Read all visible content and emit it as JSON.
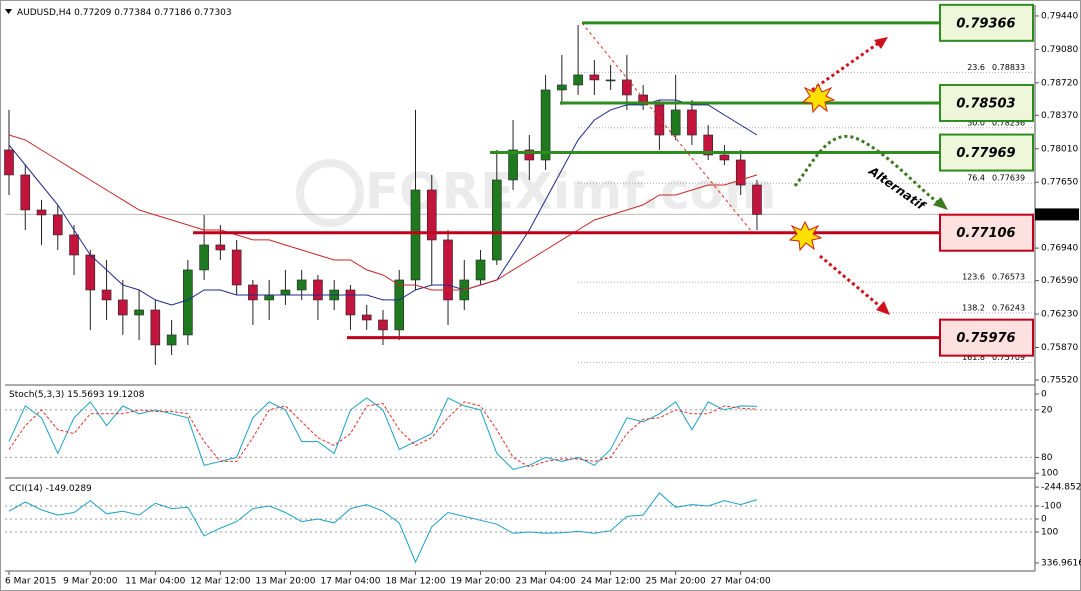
{
  "chart_data": [
    {
      "type": "candlestick",
      "title": "AUDUSD,H4",
      "header_values": [
        0.77209,
        0.77384,
        0.77186,
        0.77303
      ],
      "categories": [
        "6 Mar 2015",
        null,
        null,
        null,
        null,
        "9 Mar 20:00",
        null,
        null,
        null,
        "11 Mar 04:00",
        null,
        null,
        null,
        "12 Mar 12:00",
        null,
        null,
        null,
        "13 Mar 20:00",
        null,
        null,
        null,
        "17 Mar 04:00",
        null,
        null,
        null,
        "18 Mar 12:00",
        null,
        null,
        null,
        "19 Mar 20:00",
        null,
        null,
        null,
        "23 Mar 04:00",
        null,
        null,
        null,
        "24 Mar 12:00",
        null,
        null,
        null,
        "25 Mar 20:00",
        null,
        null,
        null,
        "27 Mar 04:00",
        null
      ],
      "ohlc": [
        [
          0.77997,
          0.78428,
          0.77512,
          0.77728
        ],
        [
          0.77728,
          0.77835,
          0.77135,
          0.77351
        ],
        [
          0.77351,
          0.77459,
          0.76974,
          0.77297
        ],
        [
          0.77297,
          0.77405,
          0.7692,
          0.77082
        ],
        [
          0.77082,
          0.77189,
          0.76651,
          0.76866
        ],
        [
          0.76866,
          0.7692,
          0.76059,
          0.76489
        ],
        [
          0.76489,
          0.76812,
          0.76166,
          0.76382
        ],
        [
          0.76382,
          0.76597,
          0.76005,
          0.7622
        ],
        [
          0.7622,
          0.76489,
          0.75951,
          0.76274
        ],
        [
          0.76274,
          0.76382,
          0.75682,
          0.75897
        ],
        [
          0.75897,
          0.76166,
          0.75789,
          0.76005
        ],
        [
          0.76005,
          0.76812,
          0.75897,
          0.76705
        ],
        [
          0.76705,
          0.77297,
          0.76597,
          0.76974
        ],
        [
          0.76974,
          0.77189,
          0.76812,
          0.7692
        ],
        [
          0.7692,
          0.77028,
          0.76435,
          0.76543
        ],
        [
          0.76543,
          0.76597,
          0.76112,
          0.76382
        ],
        [
          0.76382,
          0.76597,
          0.76166,
          0.76435
        ],
        [
          0.76435,
          0.76705,
          0.76328,
          0.76489
        ],
        [
          0.76489,
          0.76705,
          0.76382,
          0.76597
        ],
        [
          0.76597,
          0.76651,
          0.76166,
          0.76382
        ],
        [
          0.76382,
          0.76597,
          0.76274,
          0.76489
        ],
        [
          0.76489,
          0.76543,
          0.76059,
          0.7622
        ],
        [
          0.7622,
          0.76328,
          0.76059,
          0.76166
        ],
        [
          0.76166,
          0.76274,
          0.75897,
          0.76059
        ],
        [
          0.76059,
          0.76705,
          0.75951,
          0.76597
        ],
        [
          0.76597,
          0.78428,
          0.76489,
          0.77566
        ],
        [
          0.77566,
          0.77728,
          0.76543,
          0.77028
        ],
        [
          0.77028,
          0.77135,
          0.76112,
          0.76382
        ],
        [
          0.76382,
          0.76812,
          0.76274,
          0.76597
        ],
        [
          0.76597,
          0.7692,
          0.76543,
          0.76812
        ],
        [
          0.76812,
          0.77997,
          0.76759,
          0.77674
        ],
        [
          0.77674,
          0.7832,
          0.77566,
          0.77997
        ],
        [
          0.77997,
          0.78158,
          0.77674,
          0.77889
        ],
        [
          0.77889,
          0.78805,
          0.77782,
          0.78643
        ],
        [
          0.78643,
          0.7902,
          0.78482,
          0.78697
        ],
        [
          0.78697,
          0.79343,
          0.78589,
          0.78805
        ],
        [
          0.78805,
          0.78966,
          0.78589,
          0.78751
        ],
        [
          0.78751,
          0.78912,
          0.78643,
          0.78751
        ],
        [
          0.78751,
          0.7902,
          0.78428,
          0.78589
        ],
        [
          0.78589,
          0.78697,
          0.78428,
          0.78482
        ],
        [
          0.78482,
          0.78535,
          0.77997,
          0.78158
        ],
        [
          0.78158,
          0.78805,
          0.78105,
          0.78428
        ],
        [
          0.78428,
          0.78535,
          0.78051,
          0.78158
        ],
        [
          0.78158,
          0.78266,
          0.77889,
          0.77943
        ],
        [
          0.77943,
          0.78051,
          0.77835,
          0.77889
        ],
        [
          0.77889,
          0.77997,
          0.77512,
          0.7762
        ],
        [
          0.7762,
          0.77674,
          0.77135,
          0.77303
        ]
      ],
      "up_color": "#1f7a1f",
      "down_color": "#c2143c",
      "lines": [
        {
          "color": "#1f2a8a",
          "values": [
            0.78051,
            0.77835,
            0.7762,
            0.77405,
            0.77135,
            0.76866,
            0.76705,
            0.76543,
            0.76489,
            0.76382,
            0.76328,
            0.76382,
            0.76489,
            0.76489,
            0.76435,
            0.76435,
            0.76435,
            0.76435,
            0.76435,
            0.76435,
            0.76435,
            0.76435,
            0.76435,
            0.76382,
            0.76382,
            0.76489,
            0.76543,
            0.76543,
            0.76489,
            0.76543,
            0.76597,
            0.76866,
            0.77135,
            0.77459,
            0.77782,
            0.78105,
            0.7832,
            0.78428,
            0.78482,
            0.78482,
            0.78535,
            0.78535,
            0.78482,
            0.78482,
            0.78374,
            0.78266,
            0.78158
          ]
        },
        {
          "color": "#c62828",
          "values": [
            0.78158,
            0.78105,
            0.77997,
            0.77889,
            0.77782,
            0.77674,
            0.77566,
            0.77459,
            0.77351,
            0.77297,
            0.77243,
            0.77189,
            0.77135,
            0.77135,
            0.77082,
            0.77028,
            0.77028,
            0.76974,
            0.7692,
            0.76866,
            0.76812,
            0.76812,
            0.76705,
            0.76651,
            0.76543,
            0.76543,
            0.76489,
            0.76489,
            0.76489,
            0.76543,
            0.76597,
            0.76705,
            0.76812,
            0.7692,
            0.77028,
            0.77135,
            0.77243,
            0.77297,
            0.77351,
            0.77405,
            0.77512,
            0.77512,
            0.77566,
            0.7762,
            0.7762,
            0.77674,
            0.77728
          ]
        }
      ],
      "ylim": [
        0.79558,
        0.75466
      ],
      "yticks": [
        {
          "value": 0.7944,
          "label": "0.79440"
        },
        {
          "value": 0.7908,
          "label": "0.79080"
        },
        {
          "value": 0.7872,
          "label": "0.78720"
        },
        {
          "value": 0.7837,
          "label": "0.78370"
        },
        {
          "value": 0.7801,
          "label": "0.78010"
        },
        {
          "value": 0.7765,
          "label": "0.77650"
        },
        {
          "value": 0.7694,
          "label": "0.76940"
        },
        {
          "value": 0.7659,
          "label": "0.76590"
        },
        {
          "value": 0.7623,
          "label": "0.76230"
        },
        {
          "value": 0.7587,
          "label": "0.75870"
        },
        {
          "value": 0.7552,
          "label": "0.75520"
        }
      ],
      "current_price": 0.77303,
      "levels": [
        {
          "value": 0.79366,
          "color": "#2e8b1f"
        },
        {
          "value": 0.78503,
          "color": "#2e8b1f"
        },
        {
          "value": 0.77969,
          "color": "#2e8b1f"
        },
        {
          "value": 0.77106,
          "color": "#c0001a"
        },
        {
          "value": 0.75976,
          "color": "#c0001a"
        }
      ],
      "fib": [
        {
          "ratio": "23.6",
          "value": 0.78833
        },
        {
          "ratio": "50.0",
          "value": 0.78236
        },
        {
          "ratio": "76.4",
          "value": 0.77639
        },
        {
          "ratio": "123.6",
          "value": 0.76573
        },
        {
          "ratio": "138.2",
          "value": 0.76243
        },
        {
          "ratio": "161.8",
          "value": 0.75709
        }
      ],
      "watermark": "FOREXimf.com",
      "annotation": "Alternatif"
    },
    {
      "type": "line",
      "title": "Stoch(5,3,3)",
      "series": [
        {
          "color": "#1ba1c6",
          "values": [
            60,
            15,
            30,
            75,
            30,
            10,
            40,
            15,
            25,
            20,
            25,
            30,
            90,
            85,
            80,
            30,
            10,
            20,
            60,
            60,
            75,
            20,
            5,
            20,
            70,
            60,
            50,
            5,
            15,
            20,
            75,
            95,
            90,
            80,
            85,
            80,
            90,
            70,
            30,
            35,
            25,
            10,
            45,
            10,
            20,
            15,
            15.5693
          ]
        },
        {
          "color": "#e0302a",
          "dashed": true,
          "values": [
            70,
            40,
            20,
            45,
            50,
            25,
            25,
            25,
            20,
            22,
            22,
            25,
            60,
            85,
            85,
            55,
            20,
            15,
            35,
            55,
            65,
            50,
            15,
            12,
            45,
            65,
            55,
            30,
            10,
            15,
            45,
            80,
            92,
            85,
            82,
            82,
            85,
            80,
            50,
            32,
            30,
            20,
            25,
            25,
            15,
            18,
            19.1208
          ]
        }
      ],
      "ylim": [
        -7.6,
        106
      ],
      "yticks": [
        100,
        80,
        20,
        0
      ]
    },
    {
      "type": "line",
      "title": "CCI(14)",
      "series": [
        {
          "color": "#1ba1c6",
          "values": [
            -60,
            -130,
            -70,
            -30,
            -50,
            -140,
            -40,
            -60,
            -30,
            -120,
            -80,
            -90,
            130,
            70,
            20,
            -80,
            -100,
            -50,
            20,
            0,
            30,
            -80,
            -110,
            -60,
            30,
            330,
            60,
            -50,
            -20,
            10,
            40,
            110,
            100,
            110,
            105,
            95,
            110,
            90,
            -20,
            -30,
            -200,
            -90,
            -110,
            -100,
            -140,
            -110,
            -149.0289
          ]
        }
      ],
      "ylim": [
        -291.4,
        399
      ],
      "yticks": [
        336.9616,
        100,
        0,
        -100,
        -244.8522
      ]
    }
  ]
}
